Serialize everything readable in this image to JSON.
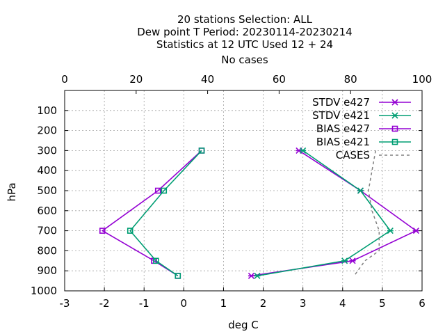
{
  "title_lines": [
    "20 stations Selection: ALL",
    "Dew point T  Period: 20230114-20230214",
    "Statistics at 12 UTC  Used  12  + 24",
    "No cases"
  ],
  "chart_data": {
    "type": "line",
    "xlabel": "deg C",
    "ylabel": "hPa",
    "xlim": [
      -3,
      6
    ],
    "x2lim": [
      0,
      100
    ],
    "ylim": [
      1000,
      0
    ],
    "x_ticks": [
      "-3",
      "-2",
      "-1",
      "0",
      "1",
      "2",
      "3",
      "4",
      "5",
      "6"
    ],
    "x2_ticks": [
      "0",
      "20",
      "40",
      "60",
      "80",
      "100"
    ],
    "y_ticks": [
      "100",
      "200",
      "300",
      "400",
      "500",
      "600",
      "700",
      "800",
      "900",
      "1000"
    ],
    "grid": true,
    "legend_position": "top-right",
    "series": [
      {
        "name": "STDV e427",
        "color": "#9400d3",
        "marker": "x",
        "axis": "x",
        "points": [
          [
            2.9,
            300
          ],
          [
            4.45,
            500
          ],
          [
            5.85,
            700
          ],
          [
            4.25,
            850
          ],
          [
            1.7,
            925
          ]
        ]
      },
      {
        "name": "STDV e421",
        "color": "#009e73",
        "marker": "x",
        "axis": "x",
        "points": [
          [
            3.0,
            300
          ],
          [
            4.45,
            500
          ],
          [
            5.2,
            700
          ],
          [
            4.05,
            850
          ],
          [
            1.85,
            925
          ]
        ]
      },
      {
        "name": "BIAS e427",
        "color": "#9400d3",
        "marker": "square",
        "axis": "x",
        "points": [
          [
            0.45,
            300
          ],
          [
            -0.65,
            500
          ],
          [
            -2.05,
            700
          ],
          [
            -0.75,
            850
          ],
          [
            -0.15,
            925
          ]
        ]
      },
      {
        "name": "BIAS e421",
        "color": "#009e73",
        "marker": "square",
        "axis": "x",
        "points": [
          [
            0.45,
            300
          ],
          [
            -0.5,
            500
          ],
          [
            -1.35,
            700
          ],
          [
            -0.7,
            850
          ],
          [
            -0.15,
            925
          ]
        ]
      },
      {
        "name": "CASES",
        "color": "#808080",
        "marker": "none",
        "dash": true,
        "axis": "x2",
        "points": [
          [
            87,
            300
          ],
          [
            86,
            400
          ],
          [
            85,
            500
          ],
          [
            86,
            600
          ],
          [
            88,
            700
          ],
          [
            88,
            800
          ],
          [
            84,
            850
          ],
          [
            82,
            900
          ],
          [
            81,
            925
          ]
        ]
      }
    ]
  }
}
